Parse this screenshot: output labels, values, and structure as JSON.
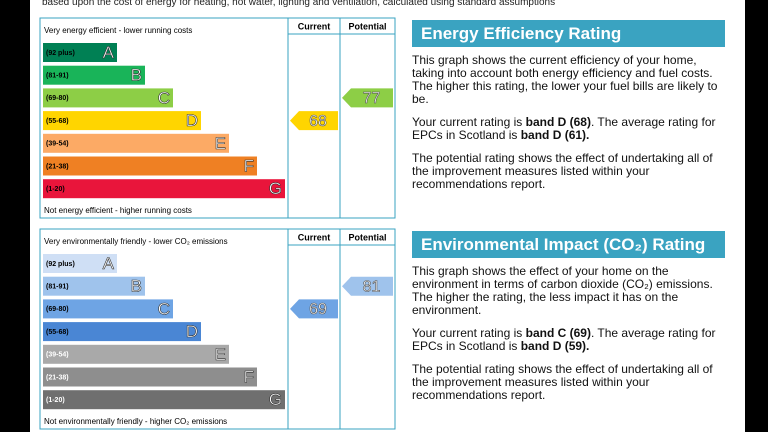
{
  "header_note": "based upon the cost of energy for heating, hot water, lighting and ventilation, calculated using standard assumptions",
  "sections": [
    {
      "chart": {
        "top_label": "Very energy efficient - lower running costs",
        "bottom_label": "Not energy efficient - higher running costs",
        "column_headers": [
          "Current",
          "Potential"
        ],
        "bands": [
          {
            "range": "(92 plus)",
            "letter": "A",
            "color": "#008054"
          },
          {
            "range": "(81-91)",
            "letter": "B",
            "color": "#19b459"
          },
          {
            "range": "(69-80)",
            "letter": "C",
            "color": "#8dce46"
          },
          {
            "range": "(55-68)",
            "letter": "D",
            "color": "#ffd500"
          },
          {
            "range": "(39-54)",
            "letter": "E",
            "color": "#fcaa65"
          },
          {
            "range": "(21-38)",
            "letter": "F",
            "color": "#ef8023"
          },
          {
            "range": "(1-20)",
            "letter": "G",
            "color": "#e9153b"
          }
        ],
        "current": "68",
        "potential": "77"
      },
      "title": "Energy Efficiency Rating",
      "paragraphs": [
        [
          {
            "text": "This graph shows the current efficiency of your home, taking into account both energy efficiency and fuel costs. The higher this rating, the lower your fuel bills are likely to be."
          }
        ],
        [
          {
            "text": "Your current rating is "
          },
          {
            "text": "band D (68)",
            "bold": true
          },
          {
            "text": ". The average rating for EPCs in Scotland is "
          },
          {
            "text": "band D (61).",
            "bold": true
          }
        ],
        [
          {
            "text": "The potential rating shows the effect of undertaking all of the improvement measures listed within your recommendations report."
          }
        ]
      ]
    },
    {
      "chart": {
        "top_label": "Very environmentally friendly - lower CO₂ emissions",
        "bottom_label": "Not environmentally friendly - higher CO₂ emissions",
        "column_headers": [
          "Current",
          "Potential"
        ],
        "bands": [
          {
            "range": "(92 plus)",
            "letter": "A",
            "color": "#cfdff5"
          },
          {
            "range": "(81-91)",
            "letter": "B",
            "color": "#9fc3ec"
          },
          {
            "range": "(69-80)",
            "letter": "C",
            "color": "#6ea4e4"
          },
          {
            "range": "(55-68)",
            "letter": "D",
            "color": "#4a86d4"
          },
          {
            "range": "(39-54)",
            "letter": "E",
            "color": "#a9a9a9"
          },
          {
            "range": "(21-38)",
            "letter": "F",
            "color": "#8e8e8e"
          },
          {
            "range": "(1-20)",
            "letter": "G",
            "color": "#6f6f6f"
          }
        ],
        "current": "69",
        "potential": "81"
      },
      "title": "Environmental Impact (CO₂) Rating",
      "paragraphs": [
        [
          {
            "text": "This graph shows the effect of your home on the environment in terms of carbon dioxide (CO₂) emissions. The higher the rating, the less impact it has on the environment."
          }
        ],
        [
          {
            "text": "Your current rating is "
          },
          {
            "text": "band C (69)",
            "bold": true
          },
          {
            "text": ". The average rating for EPCs in Scotland is "
          },
          {
            "text": "band D (59).",
            "bold": true
          }
        ],
        [
          {
            "text": "The potential rating shows the effect of undertaking all of the improvement measures listed within your recommendations report."
          }
        ]
      ]
    }
  ]
}
